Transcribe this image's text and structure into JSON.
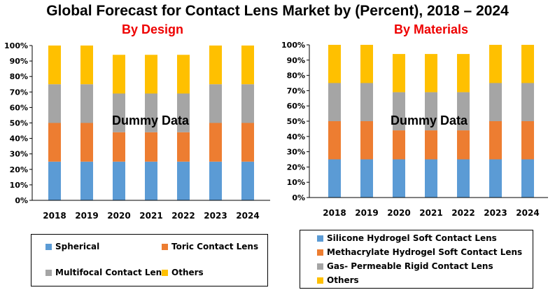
{
  "title": "Global Forecast for Contact Lens Market by (Percent), 2018 – 2024",
  "colors": {
    "blue": "#5b9bd5",
    "orange": "#ed7d31",
    "gray": "#a5a5a5",
    "yellow": "#ffc000",
    "subtitle": "#ee0000"
  },
  "watermark": "Dummy Data",
  "chart_data": [
    {
      "type": "bar",
      "stacked": true,
      "title": "By Design",
      "categories": [
        "2018",
        "2019",
        "2020",
        "2021",
        "2022",
        "2023",
        "2024"
      ],
      "y_ticks": [
        "0%",
        "10%",
        "20%",
        "30%",
        "40%",
        "50%",
        "60%",
        "70%",
        "80%",
        "90%",
        "100%"
      ],
      "ylim": [
        0,
        100
      ],
      "series": [
        {
          "name": "Spherical",
          "values": [
            25,
            25,
            25,
            25,
            25,
            25,
            25
          ]
        },
        {
          "name": "Toric Contact Lens",
          "values": [
            25,
            25,
            19,
            19,
            19,
            25,
            25
          ]
        },
        {
          "name": "Multifocal Contact Lens",
          "values": [
            25,
            25,
            25,
            25,
            25,
            25,
            25
          ]
        },
        {
          "name": "Others",
          "values": [
            25,
            25,
            25,
            25,
            25,
            25,
            25
          ]
        }
      ],
      "legend": "bottom"
    },
    {
      "type": "bar",
      "stacked": true,
      "title": "By Materials",
      "categories": [
        "2018",
        "2019",
        "2020",
        "2021",
        "2022",
        "2023",
        "2024"
      ],
      "y_ticks": [
        "0%",
        "10%",
        "20%",
        "30%",
        "40%",
        "50%",
        "60%",
        "70%",
        "80%",
        "90%",
        "100%"
      ],
      "ylim": [
        0,
        100
      ],
      "series": [
        {
          "name": "Silicone Hydrogel Soft Contact Lens",
          "values": [
            25,
            25,
            25,
            25,
            25,
            25,
            25
          ]
        },
        {
          "name": "Methacrylate Hydrogel Soft Contact Lens",
          "values": [
            25,
            25,
            19,
            19,
            19,
            25,
            25
          ]
        },
        {
          "name": "Gas- Permeable Rigid Contact Lens",
          "values": [
            25,
            25,
            25,
            25,
            25,
            25,
            25
          ]
        },
        {
          "name": "Others",
          "values": [
            25,
            25,
            25,
            25,
            25,
            25,
            25
          ]
        }
      ],
      "legend": "bottom"
    }
  ]
}
